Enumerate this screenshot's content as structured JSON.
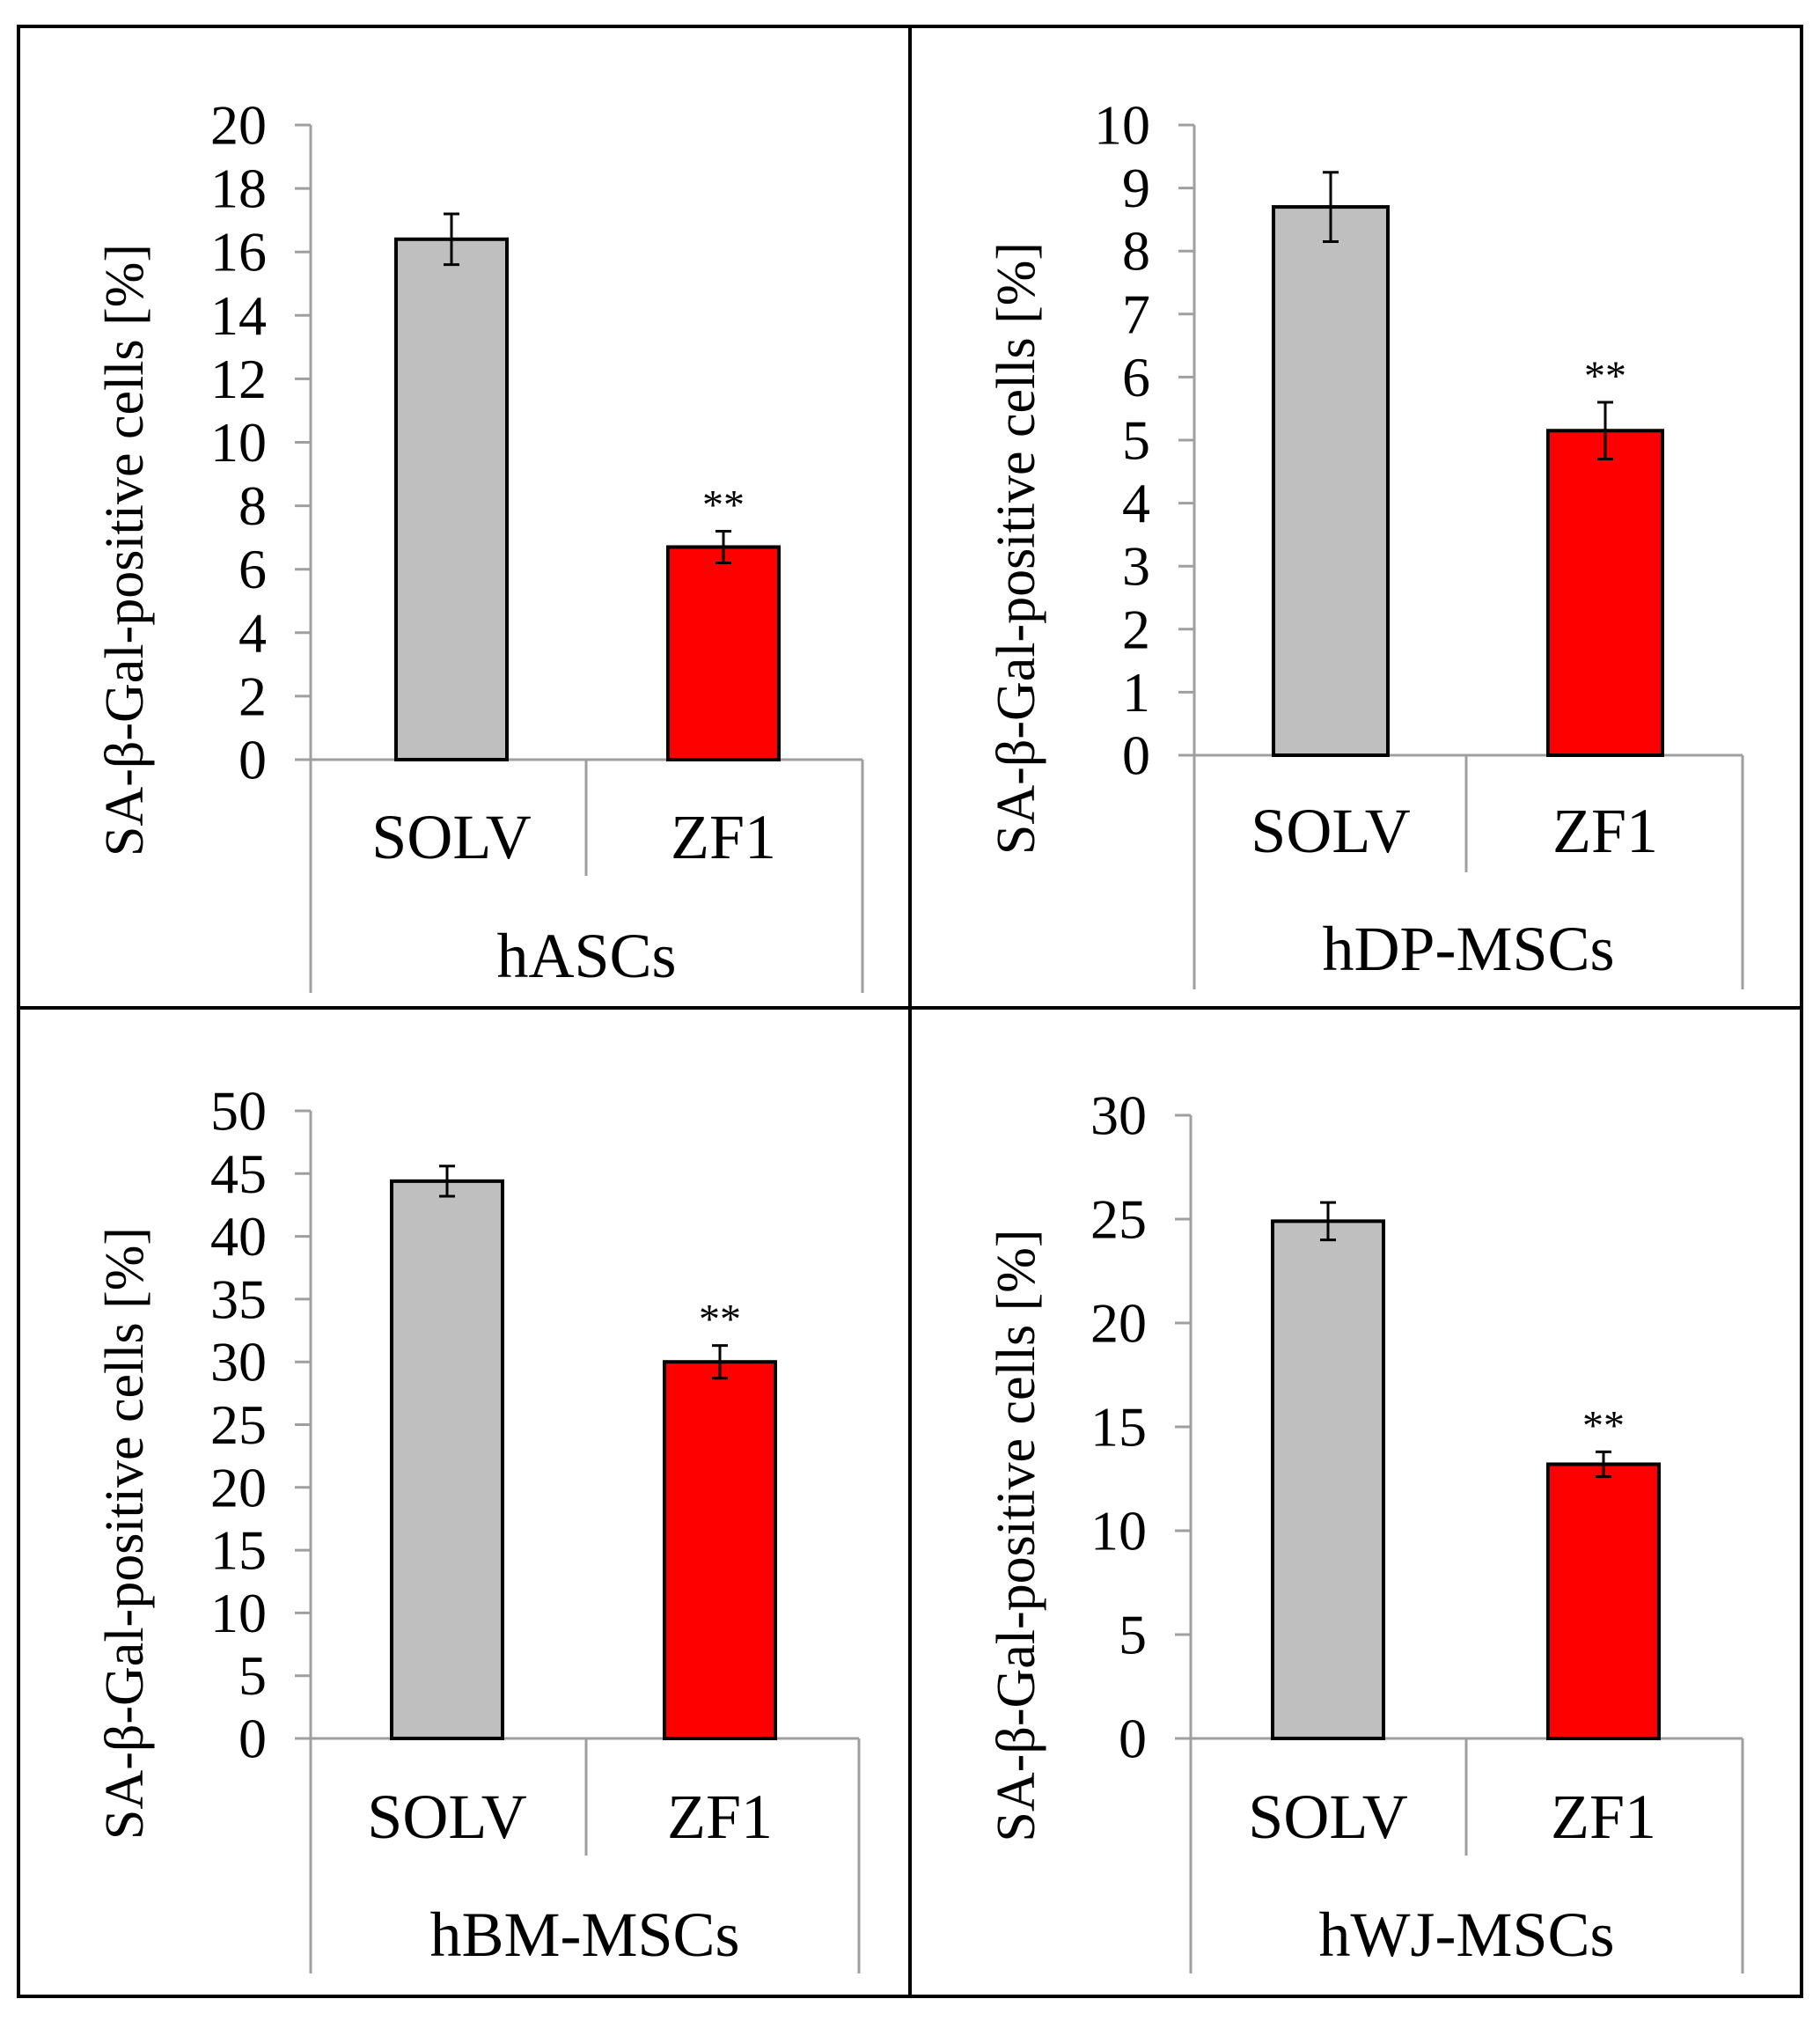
{
  "figure": {
    "title": ""
  },
  "colors": {
    "control_bar": "#bfbfbf",
    "treatment_bar": "#ff0000",
    "bar_outline": "#000000",
    "axis": "#9f9f9f",
    "border": "#000000"
  },
  "chart_data": [
    {
      "type": "bar",
      "title": "",
      "group_label": "hASCs",
      "categories": [
        "SOLV",
        "ZF1"
      ],
      "values": [
        16.4,
        6.7
      ],
      "errors": [
        0.8,
        0.5
      ],
      "significance": [
        "",
        "**"
      ],
      "ylabel": "SA-β-Gal-positive cells [%]",
      "xlabel": "",
      "ylim": [
        0,
        20
      ],
      "yticks": [
        0,
        2,
        4,
        6,
        8,
        10,
        12,
        14,
        16,
        18,
        20
      ],
      "grid": false
    },
    {
      "type": "bar",
      "title": "",
      "group_label": "hDP-MSCs",
      "categories": [
        "SOLV",
        "ZF1"
      ],
      "values": [
        8.7,
        5.15
      ],
      "errors": [
        0.55,
        0.45
      ],
      "significance": [
        "",
        "**"
      ],
      "ylabel": "SA-β-Gal-positive cells [%]",
      "xlabel": "",
      "ylim": [
        0,
        10
      ],
      "yticks": [
        0,
        1,
        2,
        3,
        4,
        5,
        6,
        7,
        8,
        9,
        10
      ],
      "grid": false
    },
    {
      "type": "bar",
      "title": "",
      "group_label": "hBM-MSCs",
      "categories": [
        "SOLV",
        "ZF1"
      ],
      "values": [
        44.4,
        30.0
      ],
      "errors": [
        1.2,
        1.3
      ],
      "significance": [
        "",
        "**"
      ],
      "ylabel": "SA-β-Gal-positive cells [%]",
      "xlabel": "",
      "ylim": [
        0,
        50
      ],
      "yticks": [
        0,
        5,
        10,
        15,
        20,
        25,
        30,
        35,
        40,
        45,
        50
      ],
      "grid": false
    },
    {
      "type": "bar",
      "title": "",
      "group_label": "hWJ-MSCs",
      "categories": [
        "SOLV",
        "ZF1"
      ],
      "values": [
        24.9,
        13.2
      ],
      "errors": [
        0.9,
        0.6
      ],
      "significance": [
        "",
        "**"
      ],
      "ylabel": "SA-β-Gal-positive cells [%]",
      "xlabel": "",
      "ylim": [
        0,
        30
      ],
      "yticks": [
        0,
        5,
        10,
        15,
        20,
        25,
        30
      ],
      "grid": false
    }
  ]
}
